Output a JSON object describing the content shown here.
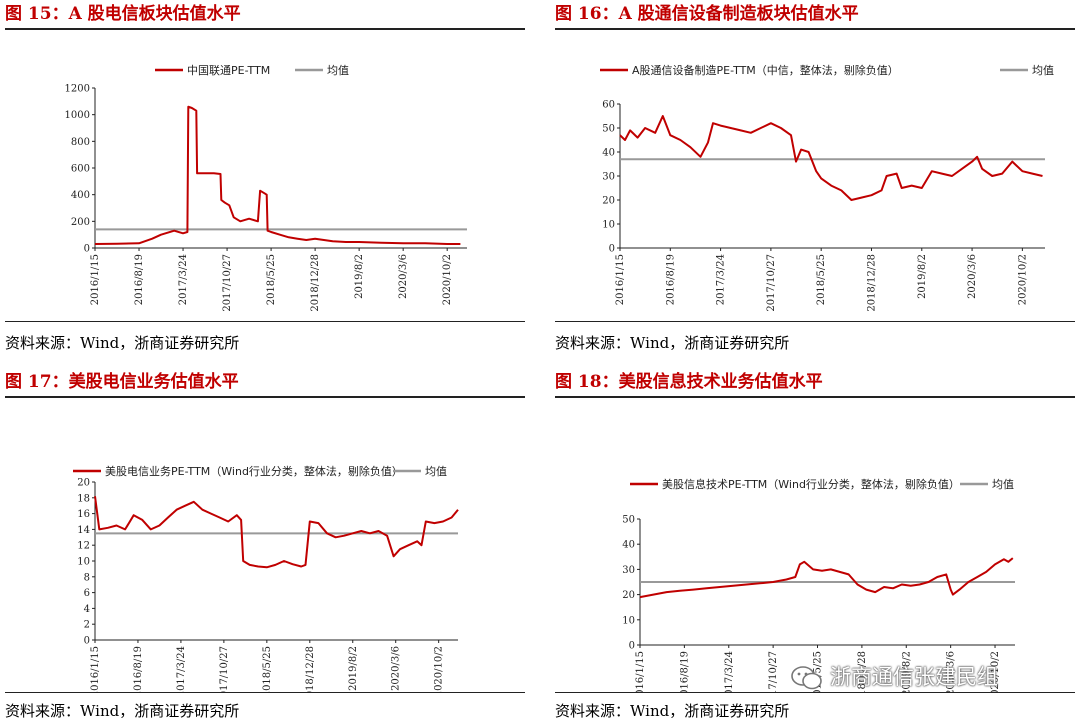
{
  "source_text": "资料来源：Wind，浙商证券研究所",
  "watermark": "浙商通信张建民组",
  "colors": {
    "series": "#c00000",
    "mean": "#999999",
    "title": "#c00000"
  },
  "dates": [
    "2016/1/15",
    "2016/8/19",
    "2017/3/24",
    "2017/10/27",
    "2018/5/25",
    "2018/12/28",
    "2019/8/2",
    "2020/3/6",
    "2020/10/2"
  ],
  "chart_data": [
    {
      "type": "line",
      "title": "图 15：A 股电信板块估值水平",
      "legend": [
        "中国联通PE-TTM",
        "均值"
      ],
      "legend_placement": "top",
      "ylim": [
        0,
        1200
      ],
      "yticks": [
        0,
        200,
        400,
        600,
        800,
        1000,
        1200
      ],
      "mean": 140,
      "series": [
        {
          "name": "中国联通PE-TTM",
          "points": [
            [
              0,
              30
            ],
            [
              0.5,
              32
            ],
            [
              1,
              35
            ],
            [
              1.3,
              70
            ],
            [
              1.5,
              100
            ],
            [
              1.8,
              130
            ],
            [
              2,
              110
            ],
            [
              2.1,
              120
            ],
            [
              2.12,
              1060
            ],
            [
              2.2,
              1050
            ],
            [
              2.3,
              1030
            ],
            [
              2.32,
              560
            ],
            [
              2.5,
              560
            ],
            [
              2.7,
              560
            ],
            [
              2.85,
              555
            ],
            [
              2.87,
              360
            ],
            [
              2.95,
              340
            ],
            [
              3.05,
              320
            ],
            [
              3.15,
              230
            ],
            [
              3.3,
              200
            ],
            [
              3.5,
              220
            ],
            [
              3.7,
              200
            ],
            [
              3.75,
              430
            ],
            [
              3.85,
              410
            ],
            [
              3.9,
              400
            ],
            [
              3.92,
              130
            ],
            [
              4.0,
              120
            ],
            [
              4.2,
              100
            ],
            [
              4.4,
              80
            ],
            [
              4.6,
              70
            ],
            [
              4.8,
              60
            ],
            [
              5.0,
              70
            ],
            [
              5.2,
              60
            ],
            [
              5.4,
              50
            ],
            [
              5.7,
              45
            ],
            [
              6.0,
              45
            ],
            [
              6.5,
              40
            ],
            [
              7.0,
              35
            ],
            [
              7.5,
              35
            ],
            [
              8.0,
              30
            ],
            [
              8.3,
              30
            ]
          ]
        }
      ]
    },
    {
      "type": "line",
      "title": "图 16：A 股通信设备制造板块估值水平",
      "legend": [
        "A股通信设备制造PE-TTM（中信，整体法，剔除负值）",
        "均值"
      ],
      "legend_placement": "top",
      "ylim": [
        0,
        60
      ],
      "yticks": [
        0,
        10,
        20,
        30,
        40,
        50,
        60
      ],
      "mean": 37,
      "series": [
        {
          "name": "A股通信设备制造PE-TTM（中信，整体法，剔除负值）",
          "points": [
            [
              0,
              47
            ],
            [
              0.1,
              45
            ],
            [
              0.2,
              49
            ],
            [
              0.35,
              46
            ],
            [
              0.5,
              50
            ],
            [
              0.7,
              48
            ],
            [
              0.85,
              55
            ],
            [
              1.0,
              47
            ],
            [
              1.2,
              45
            ],
            [
              1.4,
              42
            ],
            [
              1.6,
              38
            ],
            [
              1.75,
              44
            ],
            [
              1.85,
              52
            ],
            [
              2.0,
              51
            ],
            [
              2.2,
              50
            ],
            [
              2.4,
              49
            ],
            [
              2.6,
              48
            ],
            [
              2.8,
              50
            ],
            [
              3.0,
              52
            ],
            [
              3.2,
              50
            ],
            [
              3.4,
              47
            ],
            [
              3.5,
              36
            ],
            [
              3.6,
              41
            ],
            [
              3.75,
              40
            ],
            [
              3.9,
              32
            ],
            [
              4.0,
              29
            ],
            [
              4.2,
              26
            ],
            [
              4.4,
              24
            ],
            [
              4.6,
              20
            ],
            [
              4.8,
              21
            ],
            [
              5.0,
              22
            ],
            [
              5.2,
              24
            ],
            [
              5.3,
              30
            ],
            [
              5.5,
              31
            ],
            [
              5.6,
              25
            ],
            [
              5.8,
              26
            ],
            [
              6.0,
              25
            ],
            [
              6.2,
              32
            ],
            [
              6.4,
              31
            ],
            [
              6.6,
              30
            ],
            [
              6.8,
              33
            ],
            [
              7.0,
              36
            ],
            [
              7.1,
              38
            ],
            [
              7.2,
              33
            ],
            [
              7.4,
              30
            ],
            [
              7.6,
              31
            ],
            [
              7.8,
              36
            ],
            [
              8.0,
              32
            ],
            [
              8.2,
              31
            ],
            [
              8.4,
              30
            ]
          ]
        }
      ]
    },
    {
      "type": "line",
      "title": "图 17：美股电信业务估值水平",
      "legend": [
        "美股电信业务PE-TTM（Wind行业分类，整体法，剔除负值）",
        "均值"
      ],
      "legend_placement": "top",
      "ylim": [
        0,
        20
      ],
      "yticks": [
        0,
        2,
        4,
        6,
        8,
        10,
        12,
        14,
        16,
        18,
        20
      ],
      "mean": 13.5,
      "series": [
        {
          "name": "美股电信业务PE-TTM（Wind行业分类，整体法，剔除负值）",
          "points": [
            [
              0,
              18.2
            ],
            [
              0.1,
              14
            ],
            [
              0.3,
              14.2
            ],
            [
              0.5,
              14.5
            ],
            [
              0.7,
              14
            ],
            [
              0.9,
              15.8
            ],
            [
              1.1,
              15.2
            ],
            [
              1.3,
              14
            ],
            [
              1.5,
              14.5
            ],
            [
              1.7,
              15.5
            ],
            [
              1.9,
              16.5
            ],
            [
              2.1,
              17
            ],
            [
              2.3,
              17.5
            ],
            [
              2.5,
              16.5
            ],
            [
              2.7,
              16
            ],
            [
              2.9,
              15.5
            ],
            [
              3.1,
              15
            ],
            [
              3.3,
              15.8
            ],
            [
              3.4,
              15.2
            ],
            [
              3.45,
              10
            ],
            [
              3.6,
              9.5
            ],
            [
              3.8,
              9.3
            ],
            [
              4.0,
              9.2
            ],
            [
              4.2,
              9.5
            ],
            [
              4.4,
              10
            ],
            [
              4.6,
              9.6
            ],
            [
              4.8,
              9.3
            ],
            [
              4.9,
              9.5
            ],
            [
              5.0,
              15
            ],
            [
              5.2,
              14.8
            ],
            [
              5.4,
              13.5
            ],
            [
              5.6,
              13
            ],
            [
              5.8,
              13.2
            ],
            [
              6.0,
              13.5
            ],
            [
              6.2,
              13.8
            ],
            [
              6.4,
              13.5
            ],
            [
              6.6,
              13.8
            ],
            [
              6.8,
              13.2
            ],
            [
              6.95,
              10.6
            ],
            [
              7.1,
              11.5
            ],
            [
              7.3,
              12
            ],
            [
              7.5,
              12.5
            ],
            [
              7.6,
              12
            ],
            [
              7.7,
              15
            ],
            [
              7.9,
              14.8
            ],
            [
              8.1,
              15
            ],
            [
              8.3,
              15.5
            ],
            [
              8.45,
              16.5
            ]
          ]
        }
      ]
    },
    {
      "type": "line",
      "title": "图 18：美股信息技术业务估值水平",
      "legend": [
        "美股信息技术PE-TTM（Wind行业分类，整体法，剔除负值）",
        "均值"
      ],
      "legend_placement": "top",
      "ylim": [
        0,
        50
      ],
      "yticks": [
        0,
        10,
        20,
        30,
        40,
        50
      ],
      "mean": 25,
      "series": [
        {
          "name": "美股信息技术PE-TTM（Wind行业分类，整体法，剔除负值）",
          "points": [
            [
              0,
              19
            ],
            [
              0.3,
              20
            ],
            [
              0.6,
              21
            ],
            [
              0.9,
              21.5
            ],
            [
              1.2,
              22
            ],
            [
              1.5,
              22.5
            ],
            [
              1.8,
              23
            ],
            [
              2.1,
              23.5
            ],
            [
              2.4,
              24
            ],
            [
              2.7,
              24.5
            ],
            [
              3.0,
              25
            ],
            [
              3.3,
              26
            ],
            [
              3.5,
              27
            ],
            [
              3.6,
              32
            ],
            [
              3.7,
              33
            ],
            [
              3.9,
              30
            ],
            [
              4.1,
              29.5
            ],
            [
              4.3,
              30
            ],
            [
              4.5,
              29
            ],
            [
              4.7,
              28
            ],
            [
              4.9,
              24
            ],
            [
              5.1,
              22
            ],
            [
              5.3,
              21
            ],
            [
              5.5,
              23
            ],
            [
              5.7,
              22.5
            ],
            [
              5.9,
              24
            ],
            [
              6.1,
              23.5
            ],
            [
              6.3,
              24
            ],
            [
              6.5,
              25
            ],
            [
              6.7,
              27
            ],
            [
              6.9,
              28
            ],
            [
              7.0,
              22
            ],
            [
              7.05,
              20
            ],
            [
              7.2,
              22
            ],
            [
              7.4,
              25
            ],
            [
              7.6,
              27
            ],
            [
              7.8,
              29
            ],
            [
              8.0,
              32
            ],
            [
              8.2,
              34
            ],
            [
              8.3,
              33
            ],
            [
              8.4,
              34.5
            ]
          ]
        }
      ]
    }
  ]
}
